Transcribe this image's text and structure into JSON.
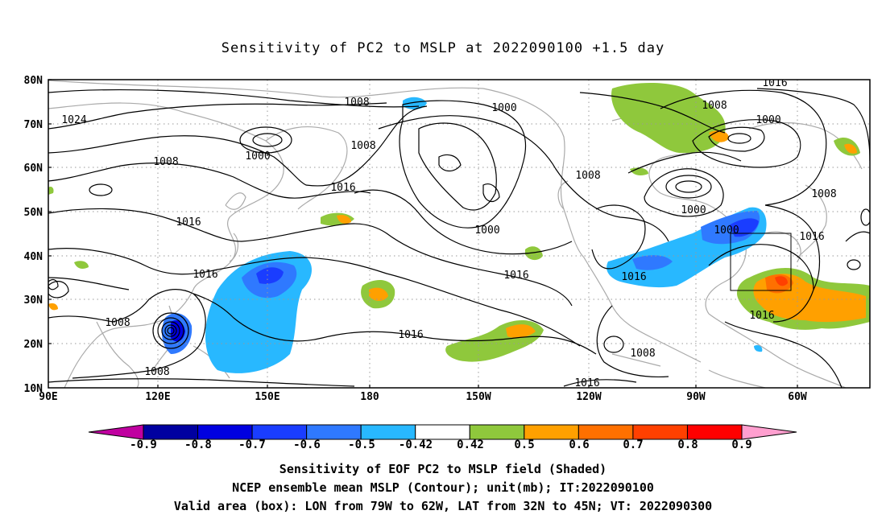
{
  "title": "Sensitivity of PC2 to MSLP at 2022090100 +1.5 day",
  "lat_labels": [
    "80N",
    "70N",
    "60N",
    "50N",
    "40N",
    "30N",
    "20N",
    "10N"
  ],
  "lon_labels": [
    "90E",
    "120E",
    "150E",
    "180",
    "150W",
    "120W",
    "90W",
    "60W"
  ],
  "contour_labels": [
    "1024",
    "1008",
    "1016",
    "1000",
    "1008",
    "1000",
    "1008",
    "1016",
    "1000",
    "1008",
    "1000",
    "1016",
    "1016",
    "1008",
    "1016",
    "1016",
    "1008",
    "1008",
    "1016",
    "1008",
    "1000",
    "1016",
    "1008",
    "1000",
    "1016",
    "1016"
  ],
  "colorbar": {
    "labels": [
      "-0.9",
      "-0.8",
      "-0.7",
      "-0.6",
      "-0.5",
      "-0.42",
      "0.42",
      "0.5",
      "0.6",
      "0.7",
      "0.8",
      "0.9"
    ],
    "colors": [
      "#0000a0",
      "#0000e0",
      "#1a3dff",
      "#2f79ff",
      "#28b8ff",
      "#ffffff",
      "#8fc83c",
      "#ffa000",
      "#ff7000",
      "#ff4000",
      "#ff0000"
    ],
    "lower_triangle": "#c000a0",
    "upper_triangle": "#ff9fcf"
  },
  "captions": [
    "Sensitivity of EOF PC2 to MSLP field (Shaded)",
    "NCEP ensemble mean MSLP (Contour); unit(mb); IT:2022090100",
    "Valid area (box): LON from 79W to 62W, LAT from 32N to 45N; VT: 2022090300"
  ]
}
